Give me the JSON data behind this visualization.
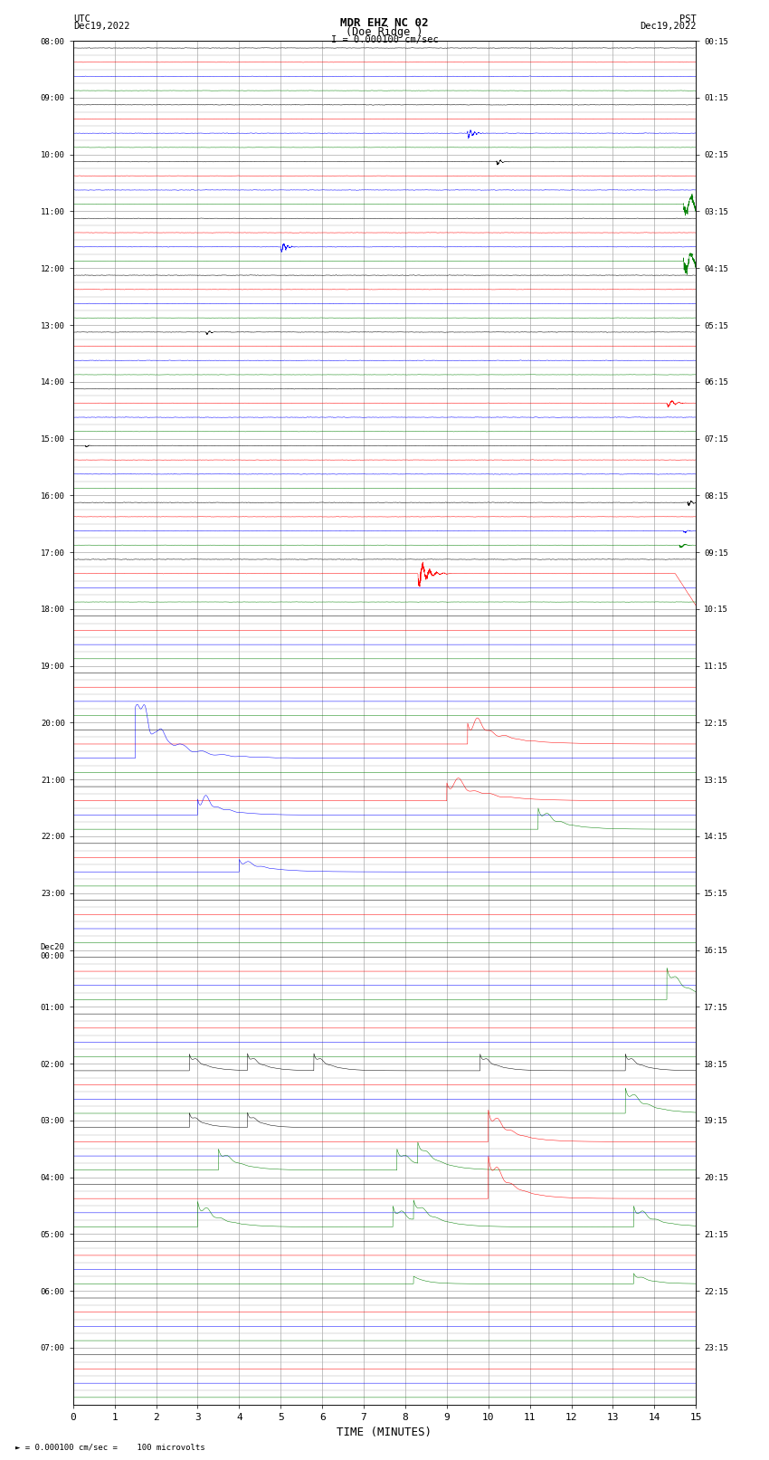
{
  "title_line1": "MDR EHZ NC 02",
  "title_line2": "(Doe Ridge )",
  "scale_label": "I = 0.000100 cm/sec",
  "left_label_top": "UTC",
  "left_label_date": "Dec19,2022",
  "right_label_top": "PST",
  "right_label_date": "Dec19,2022",
  "bottom_label": "TIME (MINUTES)",
  "footnote": "= 0.000100 cm/sec =    100 microvolts",
  "bg_color": "#ffffff",
  "grid_color": "#aaaaaa",
  "trace_colors": [
    "black",
    "red",
    "blue",
    "green"
  ],
  "utc_times_left": [
    "08:00",
    "09:00",
    "10:00",
    "11:00",
    "12:00",
    "13:00",
    "14:00",
    "15:00",
    "16:00",
    "17:00",
    "18:00",
    "19:00",
    "20:00",
    "21:00",
    "22:00",
    "23:00",
    "Dec20\n00:00",
    "01:00",
    "02:00",
    "03:00",
    "04:00",
    "05:00",
    "06:00",
    "07:00"
  ],
  "pst_times_right": [
    "00:15",
    "01:15",
    "02:15",
    "03:15",
    "04:15",
    "05:15",
    "06:15",
    "07:15",
    "08:15",
    "09:15",
    "10:15",
    "11:15",
    "12:15",
    "13:15",
    "14:15",
    "15:15",
    "16:15",
    "17:15",
    "18:15",
    "19:15",
    "20:15",
    "21:15",
    "22:15",
    "23:15"
  ],
  "n_rows": 24,
  "traces_per_row": 4,
  "xmin": 0,
  "xmax": 15,
  "noise_amplitude_active": 0.018,
  "noise_amplitude_quiet": 0.001
}
